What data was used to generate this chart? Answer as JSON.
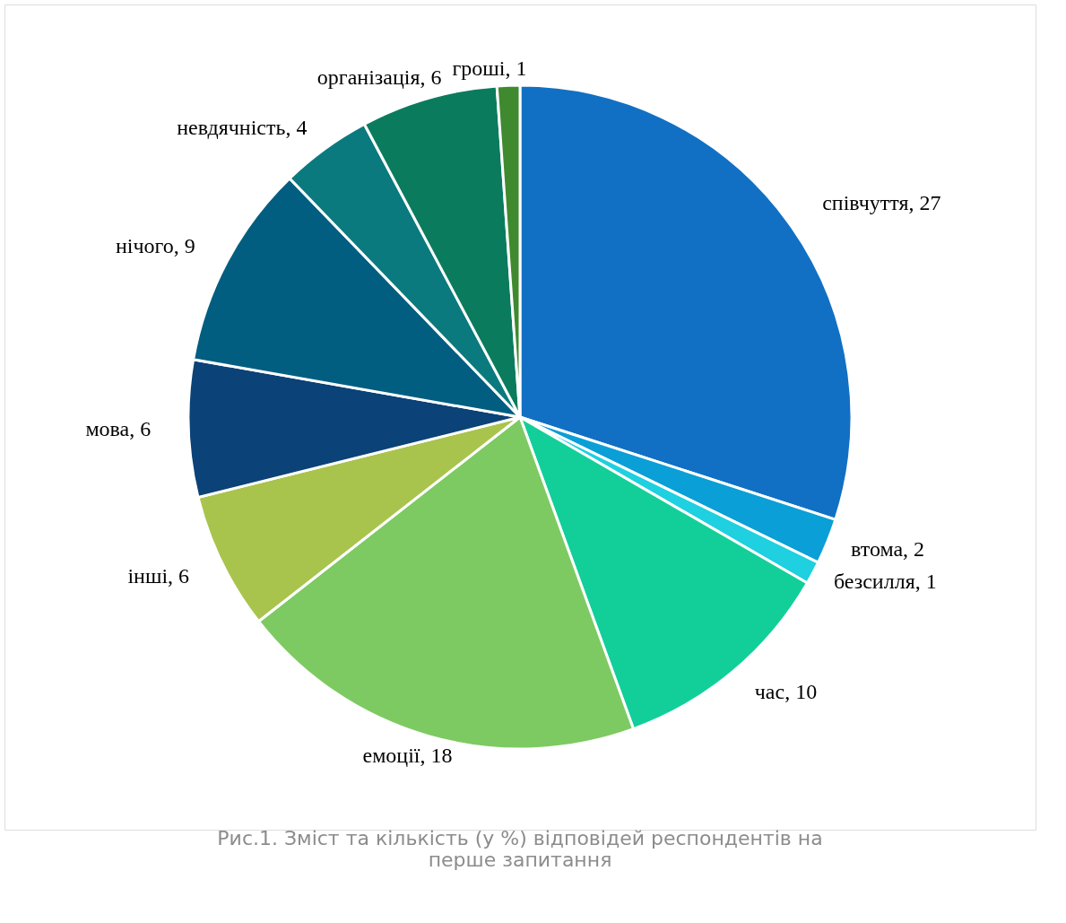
{
  "chart_data": {
    "type": "pie",
    "categories": [
      "співчуття",
      "втома",
      "безсилля",
      "час",
      "емоції",
      "інші",
      "мова",
      "нічого",
      "невдячність",
      "організація",
      "гроші"
    ],
    "values": [
      27,
      2,
      1,
      10,
      18,
      6,
      6,
      9,
      4,
      6,
      1
    ],
    "colors": [
      "#1170c4",
      "#0a9fd6",
      "#1ed0e0",
      "#12cf9a",
      "#7dca62",
      "#a8c44c",
      "#0b4277",
      "#025e80",
      "#0b7a7e",
      "#0b7b5e",
      "#3f8a2e"
    ],
    "value_labels": [
      ", 27",
      ", 2",
      ", 1",
      ", 10",
      ", 18",
      ", 6",
      ", 6",
      ", 9",
      ", 4",
      ", 6",
      ", 1"
    ],
    "legend": false,
    "annotations": [
      "Рис.1. Зміст та кількість (у %) відповідей респондентів на перше запитання"
    ]
  }
}
